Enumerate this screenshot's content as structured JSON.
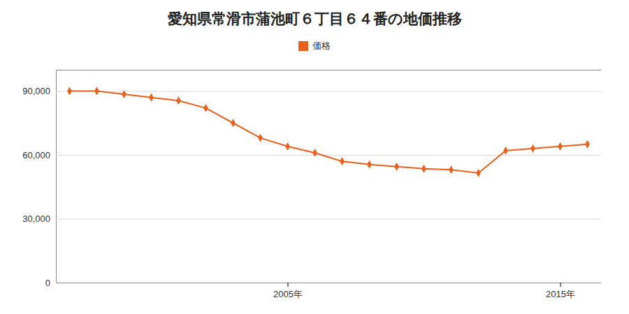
{
  "chart_data": {
    "type": "line",
    "title": "愛知県常滑市蒲池町６丁目６４番の地価推移",
    "x": [
      1997,
      1998,
      1999,
      2000,
      2001,
      2002,
      2003,
      2004,
      2005,
      2006,
      2007,
      2008,
      2009,
      2010,
      2011,
      2012,
      2013,
      2014,
      2015,
      2016
    ],
    "series": [
      {
        "name": "価格",
        "color": "#e8601c",
        "marker": "diamond",
        "values": [
          90000,
          90000,
          88500,
          87000,
          85500,
          82000,
          75000,
          68000,
          64000,
          61000,
          57000,
          55500,
          54500,
          53500,
          53000,
          51500,
          62000,
          63000,
          64000,
          65000
        ]
      }
    ],
    "xlim": [
      1996.5,
      2016.5
    ],
    "xticks": [
      {
        "value": 2005,
        "label": "2005年"
      },
      {
        "value": 2015,
        "label": "2015年"
      }
    ],
    "ylim": [
      0,
      100000
    ],
    "yticks": [
      0,
      {
        "value": 30000,
        "label": "30,000"
      },
      {
        "value": 60000,
        "label": "60,000"
      },
      {
        "value": 90000,
        "label": "90,000"
      }
    ],
    "grid": true,
    "legend": "top"
  }
}
